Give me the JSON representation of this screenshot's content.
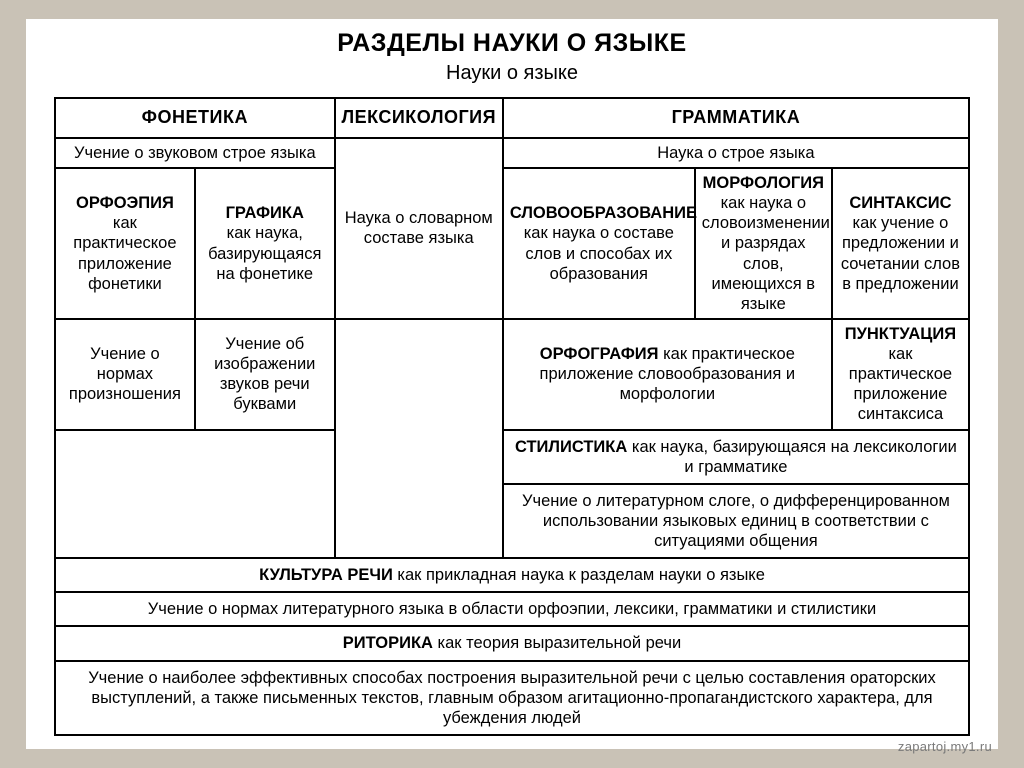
{
  "page": {
    "title": "РАЗДЕЛЫ НАУКИ О ЯЗЫКЕ",
    "subtitle": "Науки о языке",
    "watermark": "zapartoj.my1.ru"
  },
  "hdr": {
    "phon": "ФОНЕТИКА",
    "lex": "ЛЕКСИКОЛОГИЯ",
    "gram": "ГРАММАТИКА"
  },
  "row2": {
    "phon_def": "Учение о звуковом строе языка",
    "lex_def": "Наука о словарном составе языка",
    "gram_def": "Наука о строе языка"
  },
  "row3": {
    "orfo_t": "ОРФОЭПИЯ",
    "orfo_d": "как практическое приложение фонетики",
    "graf_t": "ГРАФИКА",
    "graf_d": "как наука, базирующаяся на фонетике",
    "slov_t": "СЛОВООБРАЗОВАНИЕ",
    "slov_d": "как наука о составе слов и способах их образования",
    "morf_t": "МОРФОЛОГИЯ",
    "morf_d": "как наука о словоизменении и разрядах слов, имеющихся в языке",
    "synt_t": "СИНТАКСИС",
    "synt_d": "как учение о предложении и сочетании слов в предложении"
  },
  "row4": {
    "orfo2": "Учение о нормах произношения",
    "graf2": "Учение об изображении звуков речи буквами",
    "orfgr_t": "ОРФОГРАФИЯ",
    "orfgr_d": " как практическое приложение словообразования и морфологии",
    "punkt_t": "ПУНКТУАЦИЯ",
    "punkt_d": "как практическое приложение синтаксиса"
  },
  "r5": {
    "t": "СТИЛИСТИКА",
    "d": " как наука, базирующаяся на лексикологии и грамматике"
  },
  "r6": "Учение о литературном слоге, о дифференцированном использовании языковых единиц в соответствии с ситуациями общения",
  "r7": {
    "t": "КУЛЬТУРА РЕЧИ",
    "d": " как прикладная наука к разделам науки о языке"
  },
  "r8": "Учение о нормах литературного языка в области орфоэпии, лексики, грамматики и стилистики",
  "r9": {
    "t": "РИТОРИКА",
    "d": " как теория выразительной речи"
  },
  "r10": "Учение о наиболее эффективных способах построения выразительной речи с целью составления ораторских выступлений, а также письменных текстов, главным образом агитационно-пропагандистского характера, для убеждения людей"
}
